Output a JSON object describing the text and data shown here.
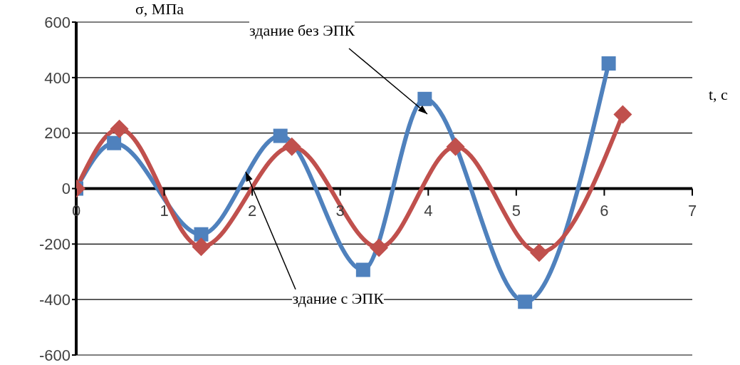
{
  "chart_data": {
    "type": "line",
    "xlabel": "t, с",
    "ylabel": "σ, МПа",
    "xlim": [
      0,
      7
    ],
    "xticks": [
      0,
      1,
      2,
      3,
      4,
      5,
      6,
      7
    ],
    "ylim": [
      -600,
      600
    ],
    "yticks": [
      -600,
      -400,
      -200,
      0,
      200,
      400,
      600
    ],
    "grid": "y",
    "series": [
      {
        "color": "#4f81bd",
        "marker": "square",
        "x": [
          0,
          0.43,
          1.42,
          2.32,
          3.26,
          3.96,
          5.1,
          6.05
        ],
        "values": [
          0,
          164,
          -165,
          190,
          -293,
          323,
          -408,
          451
        ]
      },
      {
        "color": "#c0504d",
        "marker": "diamond",
        "x": [
          0,
          0.49,
          1.42,
          2.45,
          3.44,
          4.31,
          5.26,
          6.21
        ],
        "values": [
          0,
          215,
          -210,
          151,
          -213,
          151,
          -231,
          267
        ]
      }
    ],
    "annotations": [
      "здание без ЭПК",
      {
        "text": "здание с ЭПК",
        "x": 1.93,
        "y": 60
      }
    ]
  }
}
